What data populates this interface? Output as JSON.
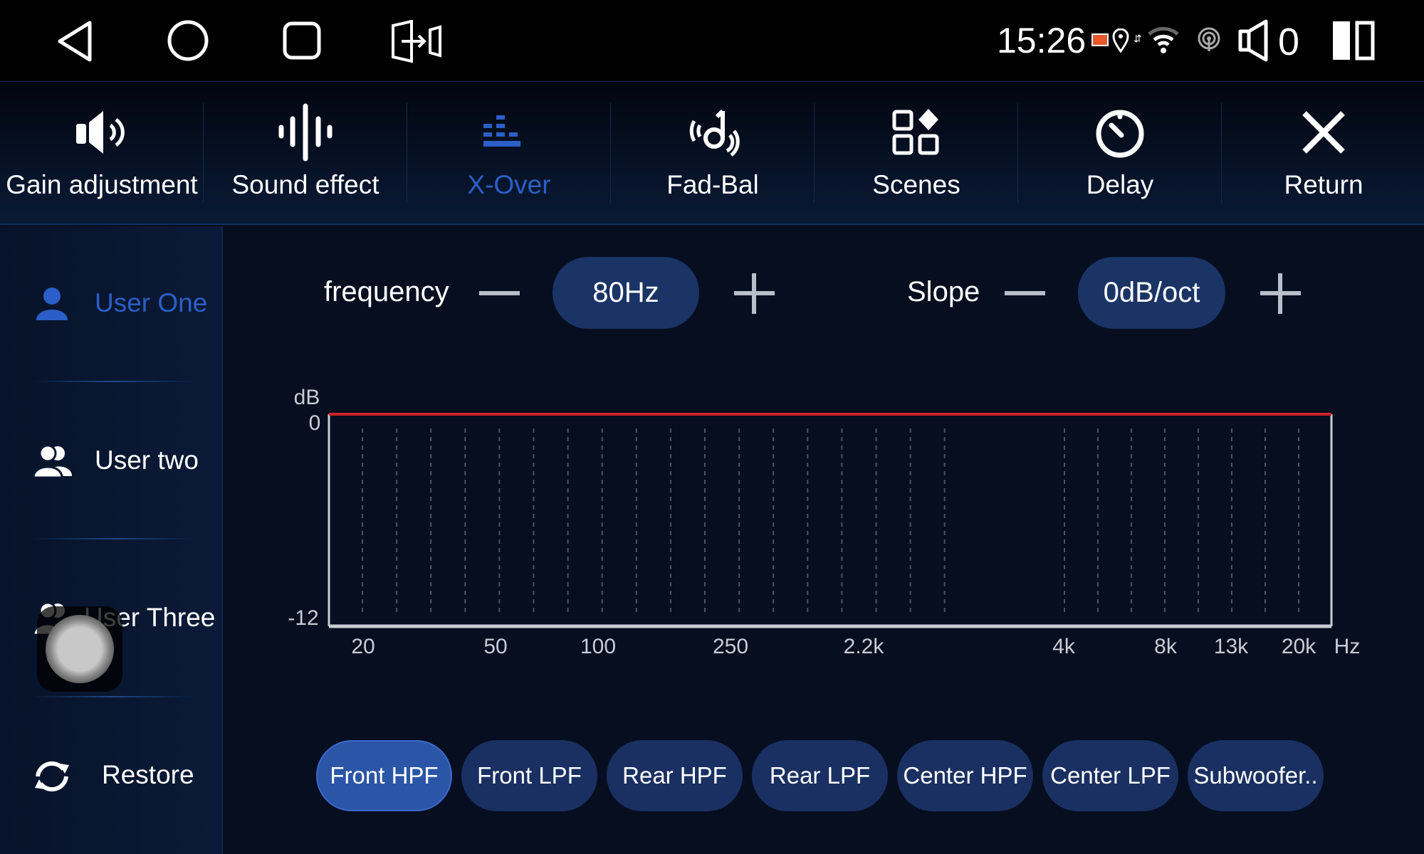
{
  "status_bar": {
    "time": "15:26",
    "volume": "0",
    "nav": [
      "back-icon",
      "home-icon",
      "recents-icon",
      "exit-icon"
    ],
    "icons": [
      "cast-icon",
      "location-icon",
      "data-arrows-icon",
      "wifi-icon",
      "hotspot-icon",
      "volume-icon",
      "split-screen-icon"
    ]
  },
  "tabs": [
    {
      "label": "Gain adjustment",
      "icon": "speaker-icon",
      "active": false
    },
    {
      "label": "Sound effect",
      "icon": "waveform-icon",
      "active": false
    },
    {
      "label": "X-Over",
      "icon": "equalizer-bars-icon",
      "active": true
    },
    {
      "label": "Fad-Bal",
      "icon": "fader-balance-icon",
      "active": false
    },
    {
      "label": "Scenes",
      "icon": "scenes-grid-icon",
      "active": false
    },
    {
      "label": "Delay",
      "icon": "timer-icon",
      "active": false
    },
    {
      "label": "Return",
      "icon": "close-icon",
      "active": false
    }
  ],
  "sidebar": {
    "items": [
      {
        "label": "User One",
        "icon": "user-icon",
        "active": true
      },
      {
        "label": "User two",
        "icon": "users-icon",
        "active": false
      },
      {
        "label": "User Three",
        "icon": "users-icon",
        "active": false
      },
      {
        "label": "Restore",
        "icon": "refresh-icon",
        "active": false
      }
    ]
  },
  "controls": {
    "frequency_label": "frequency",
    "frequency_value": "80Hz",
    "slope_label": "Slope",
    "slope_value": "0dB/oct"
  },
  "chart_data": {
    "type": "line",
    "ylabel": "dB",
    "xlabel": "Hz",
    "ylim": [
      -12,
      0
    ],
    "yticks": [
      "0",
      "-12"
    ],
    "xticks": [
      "20",
      "50",
      "100",
      "250",
      "2.2k",
      "4k",
      "8k",
      "13k",
      "20k"
    ],
    "grid": "vertical dashed",
    "series": [
      {
        "values": [
          0,
          0,
          0,
          0,
          0,
          0,
          0,
          0,
          0
        ],
        "color": "#d0222a"
      }
    ]
  },
  "channels": [
    "Front HPF",
    "Front LPF",
    "Rear HPF",
    "Rear LPF",
    "Center HPF",
    "Center LPF",
    "Subwoofer.."
  ],
  "active_channel": 0,
  "colors": {
    "accent": "#2b5fc7",
    "pill": "#1b3466",
    "active_pill": "#2b55a6",
    "curve": "#d0222a"
  }
}
